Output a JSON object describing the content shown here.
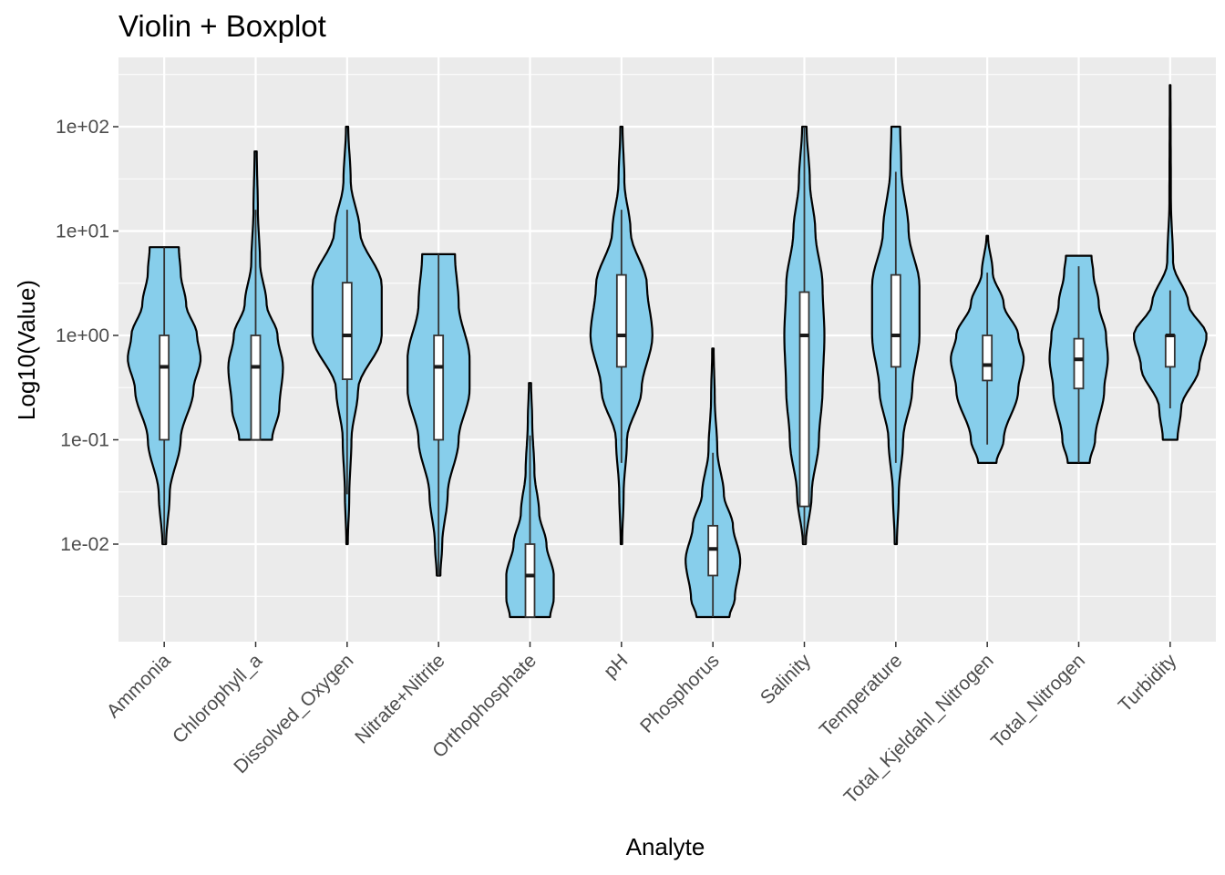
{
  "chart_data": {
    "type": "violin",
    "title": "Violin + Boxplot",
    "xlabel": "Analyte",
    "ylabel": "Log10(Value)",
    "y_scale": "log10",
    "ylim": [
      0.0011,
      450
    ],
    "y_ticks": [
      0.01,
      0.1,
      1,
      10,
      100
    ],
    "y_tick_labels": [
      "1e-02",
      "1e-01",
      "1e+00",
      "1e+01",
      "1e+02"
    ],
    "grid": true,
    "fill_color": "#87CEEB",
    "outline_color": "#000000",
    "box_fill": "#ffffff",
    "panel_background": "#EBEBEB",
    "categories": [
      "Ammonia",
      "Chlorophyll_a",
      "Dissolved_Oxygen",
      "Nitrate+Nitrite",
      "Orthophosphate",
      "pH",
      "Phosphorus",
      "Salinity",
      "Temperature",
      "Total_Kjeldahl_Nitrogen",
      "Total_Nitrogen",
      "Turbidity"
    ],
    "series": [
      {
        "category": "Ammonia",
        "min": 0.01,
        "q1": 0.1,
        "median": 0.5,
        "q3": 1.0,
        "max": 7.0,
        "whisker_low": 0.01,
        "whisker_high": 7.0,
        "density": [
          [
            0.01,
            0.05
          ],
          [
            0.03,
            0.15
          ],
          [
            0.1,
            0.45
          ],
          [
            0.3,
            0.8
          ],
          [
            0.6,
            1.0
          ],
          [
            1.0,
            0.9
          ],
          [
            2.0,
            0.6
          ],
          [
            4.0,
            0.45
          ],
          [
            7.0,
            0.4
          ]
        ]
      },
      {
        "category": "Chlorophyll_a",
        "min": 0.1,
        "q1": 0.1,
        "median": 0.5,
        "q3": 1.0,
        "max": 58,
        "whisker_low": 0.1,
        "whisker_high": 16,
        "density": [
          [
            0.1,
            0.45
          ],
          [
            0.2,
            0.65
          ],
          [
            0.5,
            0.75
          ],
          [
            1.0,
            0.6
          ],
          [
            2.0,
            0.3
          ],
          [
            5.0,
            0.12
          ],
          [
            16,
            0.06
          ],
          [
            58,
            0.03
          ]
        ]
      },
      {
        "category": "Dissolved_Oxygen",
        "min": 0.01,
        "q1": 0.38,
        "median": 1.0,
        "q3": 3.2,
        "max": 100,
        "whisker_low": 0.03,
        "whisker_high": 16,
        "density": [
          [
            0.01,
            0.02
          ],
          [
            0.03,
            0.06
          ],
          [
            0.1,
            0.12
          ],
          [
            0.3,
            0.3
          ],
          [
            1.0,
            0.95
          ],
          [
            3.0,
            0.95
          ],
          [
            10,
            0.35
          ],
          [
            30,
            0.1
          ],
          [
            100,
            0.03
          ]
        ]
      },
      {
        "category": "Nitrate+Nitrite",
        "min": 0.005,
        "q1": 0.1,
        "median": 0.5,
        "q3": 1.0,
        "max": 6.0,
        "whisker_low": 0.005,
        "whisker_high": 6.0,
        "density": [
          [
            0.005,
            0.05
          ],
          [
            0.01,
            0.1
          ],
          [
            0.03,
            0.25
          ],
          [
            0.1,
            0.55
          ],
          [
            0.3,
            0.85
          ],
          [
            0.6,
            0.85
          ],
          [
            2.0,
            0.55
          ],
          [
            6.0,
            0.45
          ]
        ]
      },
      {
        "category": "Orthophosphate",
        "min": 0.002,
        "q1": 0.002,
        "median": 0.005,
        "q3": 0.01,
        "max": 0.35,
        "whisker_low": 0.002,
        "whisker_high": 0.11,
        "density": [
          [
            0.002,
            0.55
          ],
          [
            0.003,
            0.65
          ],
          [
            0.005,
            0.65
          ],
          [
            0.01,
            0.45
          ],
          [
            0.02,
            0.25
          ],
          [
            0.05,
            0.12
          ],
          [
            0.15,
            0.06
          ],
          [
            0.35,
            0.03
          ]
        ]
      },
      {
        "category": "pH",
        "min": 0.01,
        "q1": 0.5,
        "median": 1.0,
        "q3": 3.8,
        "max": 100,
        "whisker_low": 0.06,
        "whisker_high": 16,
        "density": [
          [
            0.01,
            0.02
          ],
          [
            0.03,
            0.06
          ],
          [
            0.1,
            0.15
          ],
          [
            0.3,
            0.55
          ],
          [
            1.0,
            0.85
          ],
          [
            3.0,
            0.7
          ],
          [
            10,
            0.25
          ],
          [
            30,
            0.08
          ],
          [
            100,
            0.03
          ]
        ]
      },
      {
        "category": "Phosphorus",
        "min": 0.002,
        "q1": 0.005,
        "median": 0.009,
        "q3": 0.015,
        "max": 0.75,
        "whisker_low": 0.002,
        "whisker_high": 0.075,
        "density": [
          [
            0.002,
            0.45
          ],
          [
            0.003,
            0.6
          ],
          [
            0.007,
            0.75
          ],
          [
            0.015,
            0.55
          ],
          [
            0.03,
            0.3
          ],
          [
            0.08,
            0.12
          ],
          [
            0.25,
            0.05
          ],
          [
            0.75,
            0.02
          ]
        ]
      },
      {
        "category": "Salinity",
        "min": 0.01,
        "q1": 0.023,
        "median": 1.0,
        "q3": 2.6,
        "max": 100,
        "whisker_low": 0.01,
        "whisker_high": 100,
        "density": [
          [
            0.01,
            0.04
          ],
          [
            0.03,
            0.2
          ],
          [
            0.1,
            0.4
          ],
          [
            0.3,
            0.5
          ],
          [
            1.0,
            0.55
          ],
          [
            3.0,
            0.5
          ],
          [
            10,
            0.3
          ],
          [
            30,
            0.15
          ],
          [
            100,
            0.06
          ]
        ]
      },
      {
        "category": "Temperature",
        "min": 0.01,
        "q1": 0.5,
        "median": 1.0,
        "q3": 3.8,
        "max": 100,
        "whisker_low": 0.06,
        "whisker_high": 37,
        "density": [
          [
            0.01,
            0.03
          ],
          [
            0.03,
            0.08
          ],
          [
            0.1,
            0.2
          ],
          [
            0.3,
            0.45
          ],
          [
            1.0,
            0.65
          ],
          [
            3.0,
            0.65
          ],
          [
            10,
            0.35
          ],
          [
            40,
            0.15
          ],
          [
            100,
            0.12
          ]
        ]
      },
      {
        "category": "Total_Kjeldahl_Nitrogen",
        "min": 0.06,
        "q1": 0.37,
        "median": 0.52,
        "q3": 1.0,
        "max": 9.0,
        "whisker_low": 0.09,
        "whisker_high": 4.0,
        "density": [
          [
            0.06,
            0.25
          ],
          [
            0.1,
            0.45
          ],
          [
            0.3,
            0.85
          ],
          [
            0.6,
            1.0
          ],
          [
            1.0,
            0.85
          ],
          [
            2.0,
            0.45
          ],
          [
            4.0,
            0.15
          ],
          [
            9.0,
            0.02
          ]
        ]
      },
      {
        "category": "Total_Nitrogen",
        "min": 0.06,
        "q1": 0.31,
        "median": 0.59,
        "q3": 0.93,
        "max": 5.8,
        "whisker_low": 0.06,
        "whisker_high": 4.6,
        "density": [
          [
            0.06,
            0.3
          ],
          [
            0.1,
            0.45
          ],
          [
            0.3,
            0.7
          ],
          [
            0.6,
            0.8
          ],
          [
            1.0,
            0.75
          ],
          [
            2.0,
            0.55
          ],
          [
            4.0,
            0.4
          ],
          [
            5.8,
            0.35
          ]
        ]
      },
      {
        "category": "Turbidity",
        "min": 0.1,
        "q1": 0.5,
        "median": 1.0,
        "q3": 1.0,
        "max": 250,
        "whisker_low": 0.2,
        "whisker_high": 2.7,
        "density": [
          [
            0.1,
            0.2
          ],
          [
            0.2,
            0.3
          ],
          [
            0.5,
            0.8
          ],
          [
            1.0,
            1.0
          ],
          [
            2.0,
            0.5
          ],
          [
            5.0,
            0.08
          ],
          [
            20,
            0.02
          ],
          [
            250,
            0.01
          ]
        ]
      }
    ]
  }
}
